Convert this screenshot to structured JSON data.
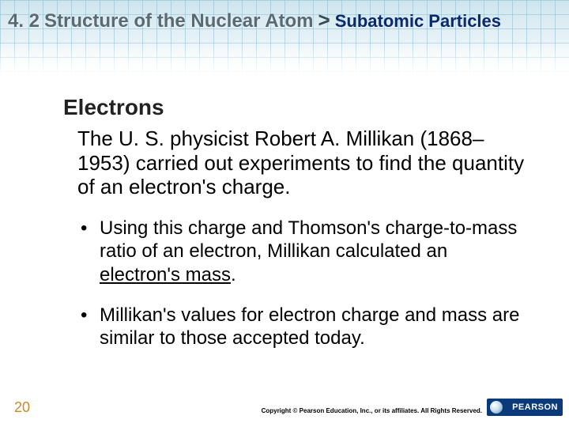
{
  "header": {
    "section_number": "4. 2",
    "section_title": "Structure of the Nuclear Atom",
    "separator": ">",
    "subtitle": "Subatomic Particles"
  },
  "content": {
    "heading": "Electrons",
    "lead": "The U. S. physicist Robert A. Millikan (1868– 1953) carried out experiments to find the quantity of an electron's charge.",
    "bullets": [
      {
        "pre": "Using this charge and Thomson's charge-to-mass ratio of an electron, Millikan calculated an ",
        "underline": "electron's mass",
        "post": "."
      },
      {
        "pre": "Millikan's values for electron charge and mass are similar to those accepted today.",
        "underline": "",
        "post": ""
      }
    ]
  },
  "footer": {
    "page": "20",
    "copyright": "Copyright © Pearson Education, Inc., or its affiliates. All Rights Reserved.",
    "brand": "PEARSON"
  },
  "colors": {
    "header_section": "#5a6a73",
    "header_sub": "#0a2a6a",
    "page_num": "#cc8a2a",
    "badge_bg": "#0a3a7a",
    "grid_line": "#8cbed7"
  }
}
